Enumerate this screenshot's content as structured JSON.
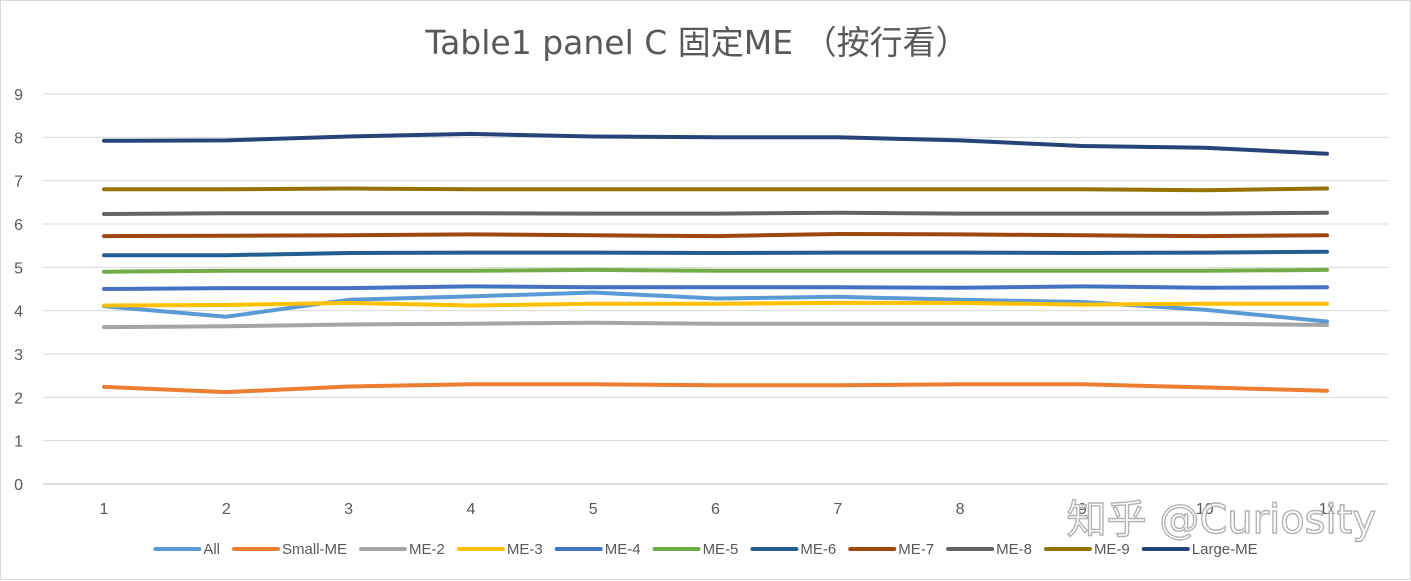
{
  "chart_data": {
    "type": "line",
    "title": "Table1 panel C 固定ME （按行看）",
    "xlabel": "",
    "ylabel": "",
    "categories": [
      "1",
      "2",
      "3",
      "4",
      "5",
      "6",
      "7",
      "8",
      "9",
      "10",
      "11"
    ],
    "y_ticks": [
      "0",
      "1",
      "2",
      "3",
      "4",
      "5",
      "6",
      "7",
      "8",
      "9"
    ],
    "ylim": [
      0,
      9
    ],
    "grid": true,
    "legend_position": "bottom",
    "series": [
      {
        "name": "All",
        "color": "#5b9bd5",
        "values": [
          4.1,
          3.86,
          4.25,
          4.33,
          4.42,
          4.28,
          4.32,
          4.25,
          4.2,
          4.02,
          3.75
        ]
      },
      {
        "name": "Small-ME",
        "color": "#ed7d31",
        "values": [
          2.24,
          2.12,
          2.25,
          2.3,
          2.3,
          2.28,
          2.28,
          2.3,
          2.3,
          2.23,
          2.15
        ]
      },
      {
        "name": "ME-2",
        "color": "#a5a5a5",
        "values": [
          3.62,
          3.64,
          3.68,
          3.7,
          3.72,
          3.7,
          3.7,
          3.7,
          3.7,
          3.7,
          3.67
        ]
      },
      {
        "name": "ME-3",
        "color": "#ffc000",
        "values": [
          4.12,
          4.13,
          4.18,
          4.12,
          4.16,
          4.16,
          4.18,
          4.18,
          4.14,
          4.16,
          4.16
        ]
      },
      {
        "name": "ME-4",
        "color": "#4472c4",
        "values": [
          4.5,
          4.52,
          4.52,
          4.56,
          4.54,
          4.54,
          4.54,
          4.53,
          4.56,
          4.53,
          4.54
        ]
      },
      {
        "name": "ME-5",
        "color": "#70ad47",
        "values": [
          4.9,
          4.92,
          4.92,
          4.92,
          4.94,
          4.92,
          4.92,
          4.92,
          4.92,
          4.92,
          4.94
        ]
      },
      {
        "name": "ME-6",
        "color": "#255e91",
        "values": [
          5.28,
          5.28,
          5.33,
          5.34,
          5.34,
          5.33,
          5.34,
          5.34,
          5.33,
          5.34,
          5.36
        ]
      },
      {
        "name": "ME-7",
        "color": "#9e480e",
        "values": [
          5.72,
          5.73,
          5.74,
          5.76,
          5.74,
          5.72,
          5.77,
          5.76,
          5.74,
          5.72,
          5.74
        ]
      },
      {
        "name": "ME-8",
        "color": "#636363",
        "values": [
          6.23,
          6.25,
          6.25,
          6.25,
          6.24,
          6.24,
          6.26,
          6.24,
          6.24,
          6.24,
          6.26
        ]
      },
      {
        "name": "ME-9",
        "color": "#997300",
        "values": [
          6.8,
          6.8,
          6.82,
          6.8,
          6.8,
          6.8,
          6.8,
          6.8,
          6.8,
          6.78,
          6.82
        ]
      },
      {
        "name": "Large-ME",
        "color": "#264478",
        "values": [
          7.92,
          7.93,
          8.02,
          8.08,
          8.02,
          8.0,
          8.0,
          7.93,
          7.8,
          7.76,
          7.62
        ]
      }
    ]
  },
  "watermark": {
    "text": "知乎 @Curiosity"
  }
}
